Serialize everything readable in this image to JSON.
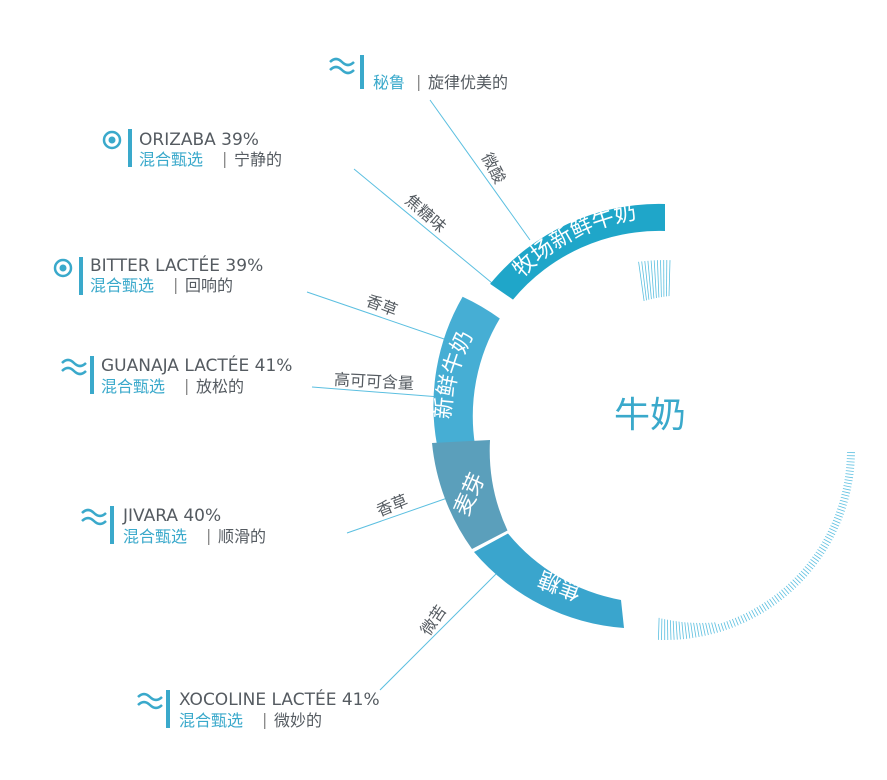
{
  "center": {
    "label": "牛奶"
  },
  "colors": {
    "accent": "#3aa9cb",
    "segment_farm": "#1fa6c9",
    "segment_fresh": "#46aed4",
    "segment_malt": "#5b9fbb",
    "segment_caramel": "#3aa5cd",
    "leader": "#5bbfe0",
    "text": "#555b61"
  },
  "segments": [
    {
      "label": "牧场新鲜牛奶"
    },
    {
      "label": "新鲜牛奶"
    },
    {
      "label": "麦芽"
    },
    {
      "label": "焦糖"
    }
  ],
  "flavors": [
    "微酸",
    "焦糖味",
    "香草",
    "高可可含量",
    "香草",
    "微苦"
  ],
  "products": [
    {
      "icon": "wave-icon",
      "name": "",
      "blend": "秘鲁",
      "separator": "|",
      "desc": "旋律优美的"
    },
    {
      "icon": "target-icon",
      "name": "ORIZABA 39%",
      "blend": "混合甄选",
      "separator": "|",
      "desc": "宁静的"
    },
    {
      "icon": "target-icon",
      "name": "BITTER LACTÉE 39%",
      "blend": "混合甄选",
      "separator": "|",
      "desc": "回响的"
    },
    {
      "icon": "wave-icon",
      "name": "GUANAJA LACTÉE 41%",
      "blend": "混合甄选",
      "separator": "|",
      "desc": "放松的"
    },
    {
      "icon": "wave-icon",
      "name": "JIVARA 40%",
      "blend": "混合甄选",
      "separator": "|",
      "desc": "顺滑的"
    },
    {
      "icon": "wave-icon",
      "name": "XOCOLINE LACTÉE 41%",
      "blend": "混合甄选",
      "separator": "|",
      "desc": "微妙的"
    }
  ]
}
